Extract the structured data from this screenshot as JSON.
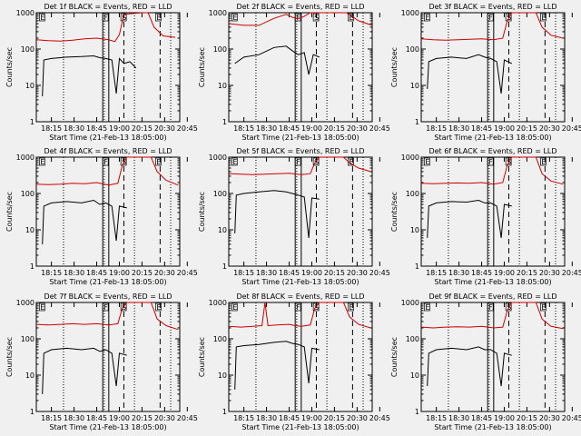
{
  "figure": {
    "background": "#f0f0f0",
    "events_color": "#000000",
    "lld_color": "#cc0000",
    "axis_color": "#000000"
  },
  "shared": {
    "type": "line",
    "yscale": "log",
    "ylim": [
      1,
      1000
    ],
    "y_ticks": [
      1,
      10,
      100,
      1000
    ],
    "y_tick_labels": [
      "1",
      "10",
      "100",
      "1000"
    ],
    "xlim_minutes": [
      0,
      95
    ],
    "x_ticks": [
      10,
      25,
      40,
      55,
      70,
      85,
      100
    ],
    "x_tick_labels": [
      "18:15",
      "18:30",
      "18:45",
      "19:00",
      "20:15",
      "20:30",
      "20:45"
    ],
    "ylabel": "Counts/sec",
    "xlabel": "Start Time (21-Feb-13 18:05:00)",
    "flag_labels": [
      "E",
      "F",
      "S",
      "E"
    ]
  },
  "chart_data": [
    {
      "title": "Det 1f BLACK = Events, RED = LLD",
      "dotted_x": [
        18,
        45,
        65,
        89
      ],
      "solid_x": [
        44,
        48
      ],
      "dashed_x": [
        58,
        82
      ],
      "flag_x": [
        2,
        44,
        56,
        79
      ],
      "events": [
        [
          4,
          5
        ],
        [
          5,
          50
        ],
        [
          10,
          55
        ],
        [
          20,
          60
        ],
        [
          30,
          62
        ],
        [
          38,
          65
        ],
        [
          42,
          58
        ],
        [
          46,
          55
        ],
        [
          50,
          50
        ],
        [
          53,
          6
        ],
        [
          55,
          55
        ],
        [
          58,
          40
        ],
        [
          62,
          45
        ],
        [
          66,
          30
        ]
      ],
      "lld": [
        [
          0,
          180
        ],
        [
          8,
          170
        ],
        [
          16,
          165
        ],
        [
          24,
          175
        ],
        [
          32,
          190
        ],
        [
          40,
          200
        ],
        [
          48,
          180
        ],
        [
          52,
          160
        ],
        [
          55,
          250
        ],
        [
          58,
          900
        ],
        [
          70,
          1000
        ],
        [
          74,
          1000
        ],
        [
          78,
          400
        ],
        [
          84,
          230
        ],
        [
          92,
          210
        ]
      ]
    },
    {
      "title": "Det 2f BLACK = Events, RED = LLD",
      "dotted_x": [
        18,
        45,
        65,
        89
      ],
      "solid_x": [
        44,
        48
      ],
      "dashed_x": [
        58,
        82
      ],
      "flag_x": [
        2,
        44,
        56,
        79
      ],
      "events": [
        [
          4,
          40
        ],
        [
          10,
          60
        ],
        [
          20,
          70
        ],
        [
          30,
          110
        ],
        [
          38,
          120
        ],
        [
          42,
          90
        ],
        [
          46,
          70
        ],
        [
          50,
          80
        ],
        [
          53,
          20
        ],
        [
          56,
          70
        ],
        [
          60,
          60
        ]
      ],
      "lld": [
        [
          0,
          500
        ],
        [
          10,
          450
        ],
        [
          20,
          450
        ],
        [
          30,
          700
        ],
        [
          38,
          900
        ],
        [
          42,
          750
        ],
        [
          46,
          680
        ],
        [
          50,
          800
        ],
        [
          54,
          1000
        ],
        [
          62,
          1000
        ],
        [
          70,
          1000
        ],
        [
          78,
          1000
        ],
        [
          86,
          600
        ],
        [
          95,
          450
        ]
      ]
    },
    {
      "title": "Det 3f BLACK = Events, RED = LLD",
      "dotted_x": [
        18,
        45,
        65,
        89
      ],
      "solid_x": [
        44,
        48
      ],
      "dashed_x": [
        58,
        82
      ],
      "flag_x": [
        2,
        44,
        56,
        79
      ],
      "events": [
        [
          4,
          8
        ],
        [
          5,
          45
        ],
        [
          10,
          55
        ],
        [
          20,
          60
        ],
        [
          30,
          55
        ],
        [
          38,
          70
        ],
        [
          42,
          60
        ],
        [
          46,
          55
        ],
        [
          50,
          45
        ],
        [
          53,
          6
        ],
        [
          55,
          50
        ],
        [
          60,
          40
        ]
      ],
      "lld": [
        [
          0,
          190
        ],
        [
          8,
          180
        ],
        [
          16,
          175
        ],
        [
          24,
          180
        ],
        [
          32,
          185
        ],
        [
          40,
          190
        ],
        [
          48,
          180
        ],
        [
          54,
          200
        ],
        [
          57,
          600
        ],
        [
          60,
          1000
        ],
        [
          76,
          1000
        ],
        [
          80,
          400
        ],
        [
          86,
          240
        ],
        [
          94,
          200
        ]
      ]
    },
    {
      "title": "Det 4f BLACK = Events, RED = LLD",
      "dotted_x": [
        18,
        45,
        65,
        89
      ],
      "solid_x": [
        44,
        48
      ],
      "dashed_x": [
        58,
        82
      ],
      "flag_x": [
        2,
        44,
        56,
        79
      ],
      "events": [
        [
          4,
          4
        ],
        [
          5,
          45
        ],
        [
          10,
          55
        ],
        [
          20,
          60
        ],
        [
          30,
          55
        ],
        [
          38,
          65
        ],
        [
          42,
          50
        ],
        [
          46,
          55
        ],
        [
          50,
          45
        ],
        [
          53,
          5
        ],
        [
          55,
          45
        ],
        [
          60,
          40
        ]
      ],
      "lld": [
        [
          0,
          180
        ],
        [
          8,
          175
        ],
        [
          16,
          180
        ],
        [
          24,
          190
        ],
        [
          32,
          185
        ],
        [
          40,
          200
        ],
        [
          48,
          170
        ],
        [
          54,
          190
        ],
        [
          57,
          600
        ],
        [
          60,
          1000
        ],
        [
          76,
          1000
        ],
        [
          80,
          400
        ],
        [
          86,
          230
        ],
        [
          94,
          170
        ]
      ]
    },
    {
      "title": "Det 5f BLACK = Events, RED = LLD",
      "dotted_x": [
        18,
        45,
        65,
        89
      ],
      "solid_x": [
        44,
        48
      ],
      "dashed_x": [
        58,
        82
      ],
      "flag_x": [
        2,
        44,
        56,
        79
      ],
      "events": [
        [
          4,
          8
        ],
        [
          5,
          90
        ],
        [
          10,
          100
        ],
        [
          20,
          110
        ],
        [
          30,
          120
        ],
        [
          38,
          110
        ],
        [
          42,
          100
        ],
        [
          46,
          90
        ],
        [
          50,
          80
        ],
        [
          53,
          6
        ],
        [
          55,
          75
        ],
        [
          60,
          70
        ]
      ],
      "lld": [
        [
          0,
          350
        ],
        [
          8,
          340
        ],
        [
          16,
          330
        ],
        [
          24,
          340
        ],
        [
          32,
          350
        ],
        [
          40,
          360
        ],
        [
          48,
          330
        ],
        [
          54,
          350
        ],
        [
          57,
          700
        ],
        [
          60,
          1000
        ],
        [
          76,
          1000
        ],
        [
          80,
          700
        ],
        [
          86,
          500
        ],
        [
          94,
          400
        ]
      ]
    },
    {
      "title": "Det 6f BLACK = Events, RED = LLD",
      "dotted_x": [
        18,
        45,
        65,
        89
      ],
      "solid_x": [
        44,
        48
      ],
      "dashed_x": [
        58,
        82
      ],
      "flag_x": [
        2,
        44,
        56,
        79
      ],
      "events": [
        [
          4,
          6
        ],
        [
          5,
          45
        ],
        [
          10,
          55
        ],
        [
          20,
          60
        ],
        [
          30,
          58
        ],
        [
          38,
          65
        ],
        [
          42,
          55
        ],
        [
          46,
          55
        ],
        [
          50,
          45
        ],
        [
          53,
          6
        ],
        [
          55,
          50
        ],
        [
          60,
          45
        ]
      ],
      "lld": [
        [
          0,
          190
        ],
        [
          8,
          185
        ],
        [
          16,
          190
        ],
        [
          24,
          195
        ],
        [
          32,
          190
        ],
        [
          40,
          200
        ],
        [
          48,
          180
        ],
        [
          54,
          200
        ],
        [
          57,
          600
        ],
        [
          60,
          1000
        ],
        [
          76,
          1000
        ],
        [
          80,
          350
        ],
        [
          86,
          220
        ],
        [
          94,
          180
        ]
      ]
    },
    {
      "title": "Det 7f BLACK = Events, RED = LLD",
      "dotted_x": [
        18,
        45,
        65,
        89
      ],
      "solid_x": [
        44,
        48
      ],
      "dashed_x": [
        58,
        82
      ],
      "flag_x": [
        2,
        44,
        56,
        79
      ],
      "events": [
        [
          4,
          3
        ],
        [
          5,
          40
        ],
        [
          10,
          50
        ],
        [
          20,
          55
        ],
        [
          30,
          50
        ],
        [
          38,
          55
        ],
        [
          42,
          45
        ],
        [
          46,
          50
        ],
        [
          50,
          40
        ],
        [
          53,
          5
        ],
        [
          55,
          40
        ],
        [
          60,
          35
        ]
      ],
      "lld": [
        [
          0,
          250
        ],
        [
          8,
          240
        ],
        [
          16,
          250
        ],
        [
          24,
          260
        ],
        [
          32,
          250
        ],
        [
          40,
          260
        ],
        [
          48,
          240
        ],
        [
          54,
          260
        ],
        [
          57,
          700
        ],
        [
          60,
          1000
        ],
        [
          76,
          1000
        ],
        [
          80,
          350
        ],
        [
          86,
          230
        ],
        [
          94,
          180
        ]
      ]
    },
    {
      "title": "Det 8f BLACK = Events, RED = LLD",
      "dotted_x": [
        18,
        45,
        65,
        89
      ],
      "solid_x": [
        44,
        48
      ],
      "dashed_x": [
        58,
        82
      ],
      "flag_x": [
        2,
        44,
        56,
        79
      ],
      "events": [
        [
          4,
          4
        ],
        [
          5,
          60
        ],
        [
          10,
          65
        ],
        [
          20,
          70
        ],
        [
          30,
          80
        ],
        [
          38,
          85
        ],
        [
          42,
          75
        ],
        [
          46,
          70
        ],
        [
          50,
          60
        ],
        [
          53,
          6
        ],
        [
          55,
          55
        ],
        [
          60,
          50
        ]
      ],
      "lld": [
        [
          0,
          220
        ],
        [
          8,
          210
        ],
        [
          16,
          220
        ],
        [
          22,
          230
        ],
        [
          24,
          1000
        ],
        [
          26,
          230
        ],
        [
          32,
          240
        ],
        [
          40,
          250
        ],
        [
          44,
          230
        ],
        [
          48,
          220
        ],
        [
          54,
          240
        ],
        [
          57,
          700
        ],
        [
          60,
          1000
        ],
        [
          76,
          1000
        ],
        [
          80,
          400
        ],
        [
          86,
          250
        ],
        [
          94,
          200
        ]
      ]
    },
    {
      "title": "Det 9f BLACK = Events, RED = LLD",
      "dotted_x": [
        18,
        45,
        65,
        89
      ],
      "solid_x": [
        44,
        48
      ],
      "dashed_x": [
        58,
        82
      ],
      "flag_x": [
        2,
        44,
        56,
        79
      ],
      "events": [
        [
          4,
          5
        ],
        [
          5,
          40
        ],
        [
          10,
          50
        ],
        [
          20,
          55
        ],
        [
          30,
          50
        ],
        [
          38,
          60
        ],
        [
          42,
          50
        ],
        [
          46,
          50
        ],
        [
          50,
          40
        ],
        [
          53,
          5
        ],
        [
          55,
          40
        ],
        [
          60,
          35
        ]
      ],
      "lld": [
        [
          0,
          210
        ],
        [
          8,
          200
        ],
        [
          16,
          210
        ],
        [
          24,
          215
        ],
        [
          32,
          210
        ],
        [
          40,
          220
        ],
        [
          48,
          200
        ],
        [
          54,
          210
        ],
        [
          57,
          600
        ],
        [
          60,
          1000
        ],
        [
          76,
          1000
        ],
        [
          80,
          350
        ],
        [
          86,
          220
        ],
        [
          94,
          190
        ]
      ]
    }
  ]
}
